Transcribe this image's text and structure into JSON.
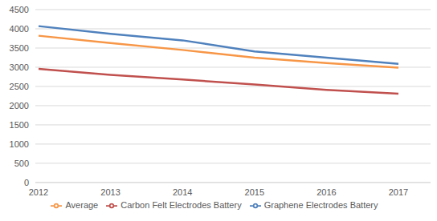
{
  "chart_data": {
    "type": "line",
    "categories": [
      "2012",
      "2013",
      "2014",
      "2015",
      "2016",
      "2017"
    ],
    "series": [
      {
        "name": "Graphene Electrodes Battery",
        "color": "#4f81bd",
        "values": [
          4070,
          3870,
          3700,
          3410,
          3250,
          3090
        ]
      },
      {
        "name": "Carbon Felt Electrodes Battery",
        "color": "#c0504d",
        "values": [
          2960,
          2800,
          2680,
          2550,
          2410,
          2310
        ]
      },
      {
        "name": "Average",
        "color": "#f79646",
        "values": [
          3820,
          3630,
          3450,
          3250,
          3110,
          2990
        ]
      }
    ],
    "ylim": [
      0,
      4500
    ],
    "yticks": [
      0,
      500,
      1000,
      1500,
      2000,
      2500,
      3000,
      3500,
      4000,
      4500
    ],
    "grid": true,
    "legend": "bottom"
  }
}
